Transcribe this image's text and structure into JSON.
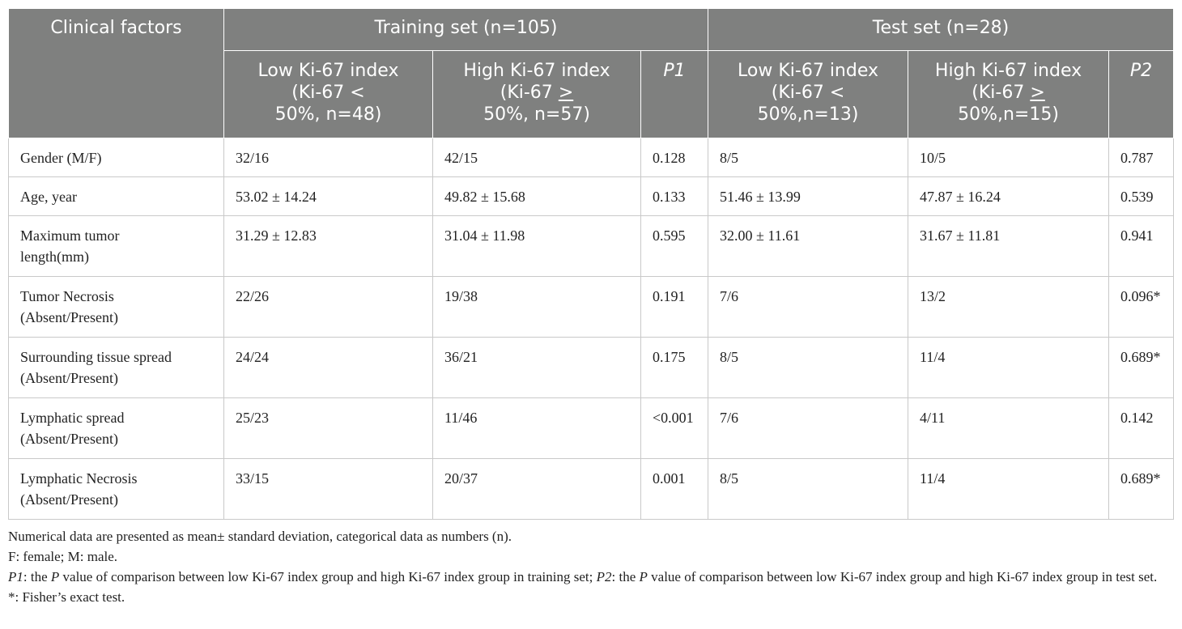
{
  "header": {
    "clinical_factors": "Clinical factors",
    "training_set": "Training set (n=105)",
    "test_set": "Test set (n=28)",
    "train_low": {
      "l1": "Low Ki-67 index",
      "l2": "(Ki-67 <",
      "l3": "50%, n=48)"
    },
    "train_high": {
      "l1": "High Ki-67 index",
      "l2a": "(Ki-67 ",
      "l2b": ">",
      "l3": "50%, n=57)"
    },
    "p1": "P1",
    "test_low": {
      "l1": "Low Ki-67 index",
      "l2": "(Ki-67 <",
      "l3": "50%,n=13)"
    },
    "test_high": {
      "l1": "High Ki-67 index",
      "l2a": "(Ki-67 ",
      "l2b": ">",
      "l3": "50%,n=15)"
    },
    "p2": "P2"
  },
  "rows": [
    {
      "factor_l1": "Gender (M/F)",
      "factor_l2": "",
      "train_low": "32/16",
      "train_high": "42/15",
      "p1": "0.128",
      "test_low": "8/5",
      "test_high": "10/5",
      "p2": "0.787"
    },
    {
      "factor_l1": "Age, year",
      "factor_l2": "",
      "train_low": "53.02 ± 14.24",
      "train_high": "49.82 ± 15.68",
      "p1": "0.133",
      "test_low": "51.46 ± 13.99",
      "test_high": "47.87 ± 16.24",
      "p2": "0.539"
    },
    {
      "factor_l1": "Maximum tumor",
      "factor_l2": "length(mm)",
      "train_low": "31.29 ± 12.83",
      "train_high": "31.04 ± 11.98",
      "p1": "0.595",
      "test_low": "32.00 ± 11.61",
      "test_high": "31.67 ± 11.81",
      "p2": "0.941"
    },
    {
      "factor_l1": "Tumor Necrosis",
      "factor_l2": "(Absent/Present)",
      "train_low": "22/26",
      "train_high": "19/38",
      "p1": "0.191",
      "test_low": "7/6",
      "test_high": "13/2",
      "p2": "0.096*"
    },
    {
      "factor_l1": "Surrounding tissue spread",
      "factor_l2": "(Absent/Present)",
      "train_low": "24/24",
      "train_high": "36/21",
      "p1": "0.175",
      "test_low": "8/5",
      "test_high": "11/4",
      "p2": "0.689*"
    },
    {
      "factor_l1": "Lymphatic spread",
      "factor_l2": "(Absent/Present)",
      "train_low": "25/23",
      "train_high": "11/46",
      "p1": "<0.001",
      "test_low": "7/6",
      "test_high": "4/11",
      "p2": "0.142"
    },
    {
      "factor_l1": "Lymphatic Necrosis",
      "factor_l2": "(Absent/Present)",
      "train_low": "33/15",
      "train_high": "20/37",
      "p1": "0.001",
      "test_low": "8/5",
      "test_high": "11/4",
      "p2": "0.689*"
    }
  ],
  "notes": {
    "n1": "Numerical data are presented as mean± standard deviation, categorical data as numbers (n).",
    "n2": "F: female; M: male.",
    "n3_p1": "P1",
    "n3_a": ": the ",
    "n3_p": "P",
    "n3_b": " value of comparison between low Ki-67 index group and high Ki-67 index group in training set; ",
    "n3_p2": "P2",
    "n3_c": ": the ",
    "n3_p_2": "P",
    "n3_d": " value of comparison between low Ki-67 index group and high Ki-67 index group in test set.",
    "n4": "*: Fisher’s exact test."
  }
}
